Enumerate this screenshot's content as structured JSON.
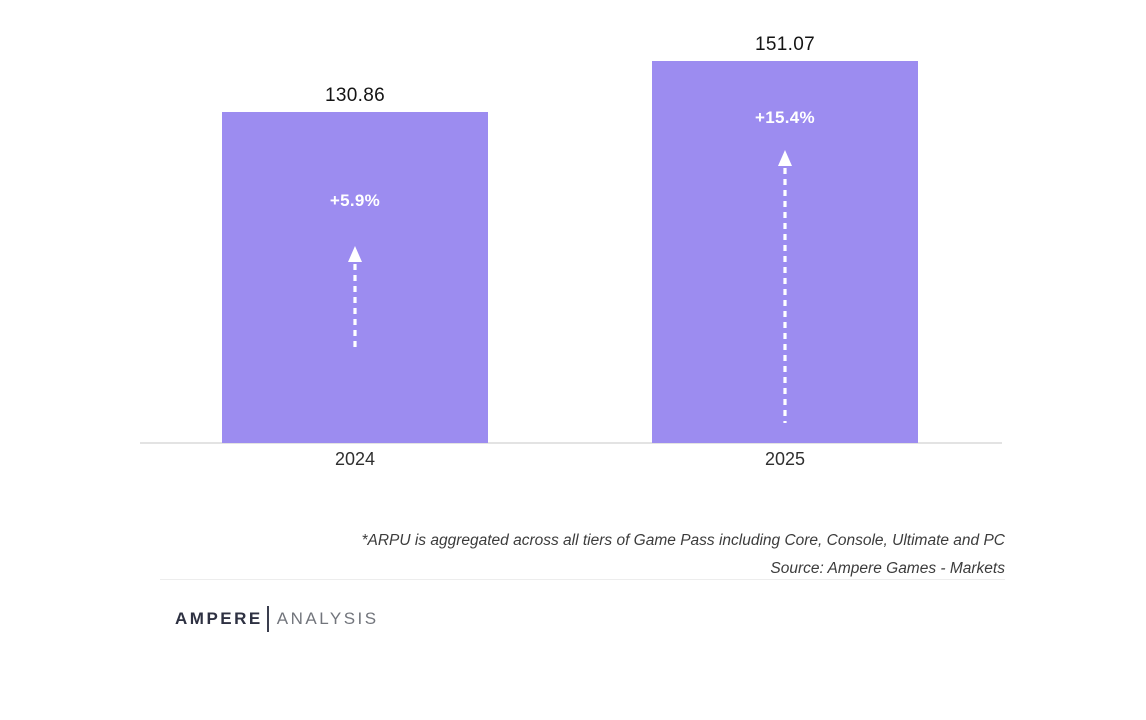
{
  "chart_data": {
    "type": "bar",
    "title": "",
    "categories": [
      "2024",
      "2025"
    ],
    "values": [
      130.86,
      151.07
    ],
    "value_labels": [
      "130.86",
      "151.07"
    ],
    "growth_labels": [
      "+5.9%",
      "+15.4%"
    ],
    "bar_color": "#9c8cf0",
    "ylim": [
      0,
      175
    ],
    "grid": false,
    "legend": false,
    "xlabel": "",
    "ylabel": "",
    "footnote": "*ARPU is aggregated across all tiers of Game Pass including Core, Console, Ultimate and PC",
    "source": "Source: Ampere Games - Markets"
  },
  "branding": {
    "name_primary": "AMPERE",
    "name_secondary": "ANALYSIS"
  },
  "colors": {
    "bar": "#9c8cf0",
    "value_label": "#141414",
    "axis_line": "#e3e3e3",
    "footnote_text": "#3c3c3c",
    "logo_primary": "#2e3142",
    "logo_secondary": "#72757c"
  }
}
